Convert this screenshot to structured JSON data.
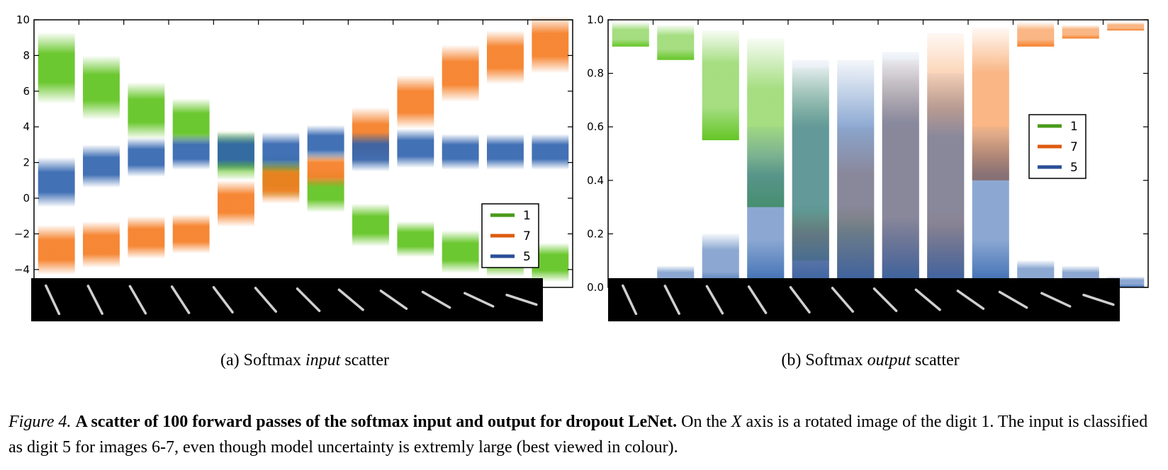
{
  "colors": {
    "digit_1": "#5cc21a",
    "digit_7": "#f57a1f",
    "digit_5": "#2d61ad",
    "legend_1": "#4a9a18",
    "legend_7": "#dd5a10",
    "legend_5": "#2a4f96",
    "image_strip_bg": "#000000",
    "digit_stroke": "#e6e6e6"
  },
  "subplots": {
    "a": {
      "prefix": "(a) Softmax ",
      "emph": "input",
      "suffix": " scatter"
    },
    "b": {
      "prefix": "(b) Softmax ",
      "emph": "output",
      "suffix": " scatter"
    }
  },
  "caption": {
    "lead": "Figure 4.",
    "title": "A scatter of 100 forward passes of the softmax input and output for dropout LeNet.",
    "text_1": "On the ",
    "variable": "X",
    "text_2": " axis is a rotated image of the digit 1. The input is classified as digit 5 for images 6-7, even though model uncertainty is extremly large (best viewed in colour)."
  },
  "chart_data": [
    {
      "type": "scatter",
      "title": "",
      "xlabel": "",
      "ylabel": "",
      "ylim": [
        -5,
        10
      ],
      "yticks": [
        10,
        8,
        6,
        4,
        2,
        0,
        -2,
        -4
      ],
      "ytick_labels": [
        "10",
        "8",
        "6",
        "4",
        "2",
        "0",
        "−2",
        "−4"
      ],
      "grid": false,
      "legend_position": "lower-right",
      "categories": [
        1,
        2,
        3,
        4,
        5,
        6,
        7,
        8,
        9,
        10,
        11,
        12
      ],
      "rotation_deg": [
        -25,
        -27,
        -30,
        -33,
        -37,
        -41,
        -45,
        -50,
        -55,
        -60,
        -65,
        -72
      ],
      "series": [
        {
          "name": "1",
          "mean": [
            7.3,
            6.2,
            4.9,
            4.2,
            2.4,
            1.2,
            0.4,
            -1.5,
            -2.3,
            -3.0,
            -3.3,
            -3.6
          ],
          "spread": [
            2.0,
            1.8,
            1.6,
            1.4,
            1.4,
            1.2,
            1.2,
            1.2,
            1.0,
            1.2,
            1.1,
            1.1
          ]
        },
        {
          "name": "7",
          "mean": [
            -2.9,
            -2.6,
            -2.2,
            -2.0,
            -0.3,
            0.9,
            1.6,
            3.5,
            5.4,
            7.0,
            7.9,
            8.6
          ],
          "spread": [
            1.4,
            1.3,
            1.2,
            1.1,
            1.3,
            1.2,
            1.0,
            1.6,
            1.5,
            1.6,
            1.5,
            1.6
          ]
        },
        {
          "name": "5",
          "mean": [
            0.9,
            1.8,
            2.3,
            2.6,
            2.6,
            2.6,
            3.1,
            2.6,
            2.8,
            2.6,
            2.6,
            2.6
          ],
          "spread": [
            1.4,
            1.2,
            1.1,
            1.0,
            1.1,
            1.1,
            1.0,
            1.1,
            1.1,
            1.0,
            1.0,
            1.0
          ]
        }
      ]
    },
    {
      "type": "scatter",
      "title": "",
      "xlabel": "",
      "ylabel": "",
      "ylim": [
        0,
        1
      ],
      "yticks": [
        1.0,
        0.8,
        0.6,
        0.4,
        0.2,
        0.0
      ],
      "ytick_labels": [
        "1.0",
        "0.8",
        "0.6",
        "0.4",
        "0.2",
        "0.0"
      ],
      "grid": false,
      "legend_position": "center-right",
      "categories": [
        1,
        2,
        3,
        4,
        5,
        6,
        7,
        8,
        9,
        10,
        11,
        12
      ],
      "rotation_deg": [
        -25,
        -27,
        -30,
        -33,
        -37,
        -41,
        -45,
        -50,
        -55,
        -60,
        -65,
        -72
      ],
      "series": [
        {
          "name": "1",
          "upper": [
            0.99,
            0.98,
            0.96,
            0.93,
            0.82,
            0.3,
            0.1,
            0.03,
            0.02,
            0.0,
            0.0,
            0.0
          ],
          "lower": [
            0.9,
            0.85,
            0.55,
            0.3,
            0.1,
            0.02,
            0.0,
            0.0,
            0.0,
            0.0,
            0.0,
            0.0
          ]
        },
        {
          "name": "7",
          "upper": [
            0.0,
            0.0,
            0.0,
            0.03,
            0.28,
            0.6,
            0.85,
            0.95,
            0.97,
            0.99,
            0.98,
            0.99
          ],
          "lower": [
            0.0,
            0.0,
            0.0,
            0.0,
            0.0,
            0.0,
            0.0,
            0.0,
            0.4,
            0.9,
            0.93,
            0.96
          ]
        },
        {
          "name": "5",
          "upper": [
            0.02,
            0.08,
            0.2,
            0.6,
            0.85,
            0.85,
            0.88,
            0.8,
            0.6,
            0.1,
            0.08,
            0.04
          ],
          "lower": [
            0.0,
            0.0,
            0.0,
            0.0,
            0.0,
            0.0,
            0.0,
            0.0,
            0.0,
            0.0,
            0.0,
            0.0
          ]
        }
      ]
    }
  ]
}
